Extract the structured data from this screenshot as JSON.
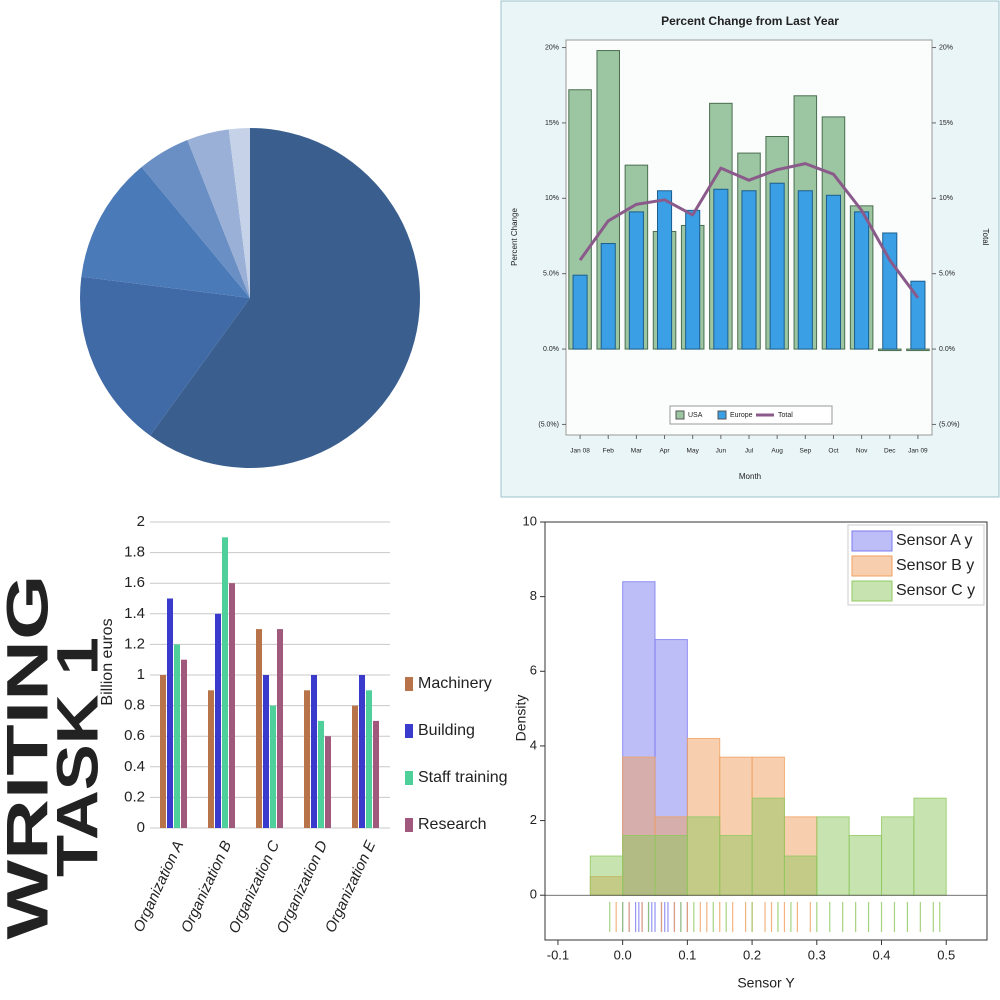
{
  "chart_data": [
    {
      "type": "pie",
      "values": [
        60,
        17,
        12,
        5,
        4,
        2
      ],
      "colors": [
        "#3a5f8f",
        "#3f6aa6",
        "#4a7ab8",
        "#6a8fc4",
        "#9ab0d6",
        "#c5d2e8"
      ]
    },
    {
      "type": "combo",
      "title": "Percent Change from Last Year",
      "y_label": "Percent Change",
      "y2_label": "Total",
      "x_label": "Month",
      "categories": [
        "Jan 08",
        "Feb",
        "Mar",
        "Apr",
        "May",
        "Jun",
        "Jul",
        "Aug",
        "Sep",
        "Oct",
        "Nov",
        "Dec",
        "Jan 09"
      ],
      "series": [
        {
          "name": "USA",
          "mark": "bar",
          "color": "#9cc5a1",
          "values": [
            17.2,
            19.8,
            12.2,
            7.8,
            8.2,
            16.3,
            13.0,
            14.1,
            16.8,
            15.4,
            9.5,
            -0.1,
            -0.1
          ]
        },
        {
          "name": "Europe",
          "mark": "bar",
          "color": "#3a9fe5",
          "values": [
            4.9,
            7.0,
            9.1,
            10.5,
            9.2,
            10.6,
            10.5,
            11.0,
            10.5,
            10.2,
            9.1,
            7.7,
            4.5
          ]
        },
        {
          "name": "Total",
          "mark": "line",
          "axis": "y2",
          "color": "#8a5a8a",
          "values": [
            5.9,
            8.5,
            9.6,
            9.9,
            8.9,
            12.0,
            11.2,
            11.9,
            12.3,
            11.6,
            9.2,
            5.9,
            3.4
          ]
        }
      ],
      "ylim": [
        -5.7,
        20.5
      ],
      "yticks": [
        {
          "value": 20,
          "label": "20%"
        },
        {
          "value": 15,
          "label": "15%"
        },
        {
          "value": 10,
          "label": "10%"
        },
        {
          "value": 5,
          "label": "5.0%"
        },
        {
          "value": 0,
          "label": "0.0%"
        },
        {
          "value": -5,
          "label": "(5.0%)"
        }
      ],
      "y2lim": [
        -5.7,
        20.5
      ],
      "y2ticks": [
        {
          "value": 20,
          "label": "20%"
        },
        {
          "value": 15,
          "label": "15%"
        },
        {
          "value": 10,
          "label": "10%"
        },
        {
          "value": 5,
          "label": "5.0%"
        },
        {
          "value": 0,
          "label": "0.0%"
        },
        {
          "value": -5,
          "label": "(5.0%)"
        }
      ],
      "legend": "bottom"
    },
    {
      "type": "bar",
      "annotations": [
        "WRITING",
        "TASK 1"
      ],
      "y_label": "Billion euros",
      "categories": [
        "Organization A",
        "Organization B",
        "Organization C",
        "Organization D",
        "Organization E"
      ],
      "series": [
        {
          "name": "Machinery",
          "color": "#b8734a",
          "values": [
            1.0,
            0.9,
            1.3,
            0.9,
            0.8
          ]
        },
        {
          "name": "Building",
          "color": "#3a3acd",
          "values": [
            1.5,
            1.4,
            1.0,
            1.0,
            1.0
          ]
        },
        {
          "name": "Staff training",
          "color": "#4fcf9a",
          "values": [
            1.2,
            1.9,
            0.8,
            0.7,
            0.9
          ]
        },
        {
          "name": "Research",
          "color": "#a0587c",
          "values": [
            1.1,
            1.6,
            1.3,
            0.6,
            0.7
          ]
        }
      ],
      "ylim": [
        0,
        2
      ],
      "yticks": [
        0,
        0.2,
        0.4,
        0.6,
        0.8,
        1,
        1.2,
        1.4,
        1.6,
        1.8,
        2
      ],
      "grid": true,
      "legend": "right"
    },
    {
      "type": "histogram",
      "x_label": "Sensor Y",
      "y_label": "Density",
      "xlim": [
        -0.12,
        0.563
      ],
      "ylim": [
        -1.2,
        10
      ],
      "xticks": [
        -0.1,
        {
          "value": 0,
          "label": "0.0"
        },
        0.1,
        0.2,
        0.3,
        0.4,
        0.5
      ],
      "yticks": [
        0,
        2,
        4,
        6,
        8,
        10
      ],
      "series": [
        {
          "name": "Sensor A y",
          "color": "#7b7bf0",
          "bins": [
            0,
            0.05,
            0.1
          ],
          "values": [
            8.4,
            6.85
          ],
          "rug": [
            0.0,
            0.01,
            0.02,
            0.025,
            0.03,
            0.04,
            0.045,
            0.05,
            0.06,
            0.065,
            0.07,
            0.08,
            0.09,
            0.1
          ]
        },
        {
          "name": "Sensor B y",
          "color": "#f0a060",
          "bins": [
            -0.05,
            0,
            0.05,
            0.1,
            0.15,
            0.2,
            0.25,
            0.3
          ],
          "values": [
            0.5,
            3.7,
            2.1,
            4.2,
            3.7,
            3.7,
            2.1
          ],
          "rug": [
            -0.01,
            0.01,
            0.03,
            0.06,
            0.08,
            0.1,
            0.12,
            0.13,
            0.15,
            0.17,
            0.19,
            0.2,
            0.22,
            0.23,
            0.25,
            0.27,
            0.29
          ]
        },
        {
          "name": "Sensor C y",
          "color": "#90c860",
          "bins": [
            -0.05,
            0,
            0.05,
            0.1,
            0.15,
            0.2,
            0.25,
            0.3,
            0.35,
            0.4,
            0.45,
            0.5
          ],
          "values": [
            1.05,
            1.6,
            1.6,
            2.1,
            1.6,
            2.6,
            1.05,
            2.1,
            1.6,
            2.1,
            2.6
          ],
          "rug": [
            -0.02,
            0.0,
            0.04,
            0.09,
            0.11,
            0.14,
            0.16,
            0.2,
            0.24,
            0.26,
            0.3,
            0.32,
            0.34,
            0.36,
            0.38,
            0.4,
            0.42,
            0.44,
            0.46,
            0.48,
            0.49
          ]
        }
      ],
      "legend": "upper right"
    }
  ]
}
